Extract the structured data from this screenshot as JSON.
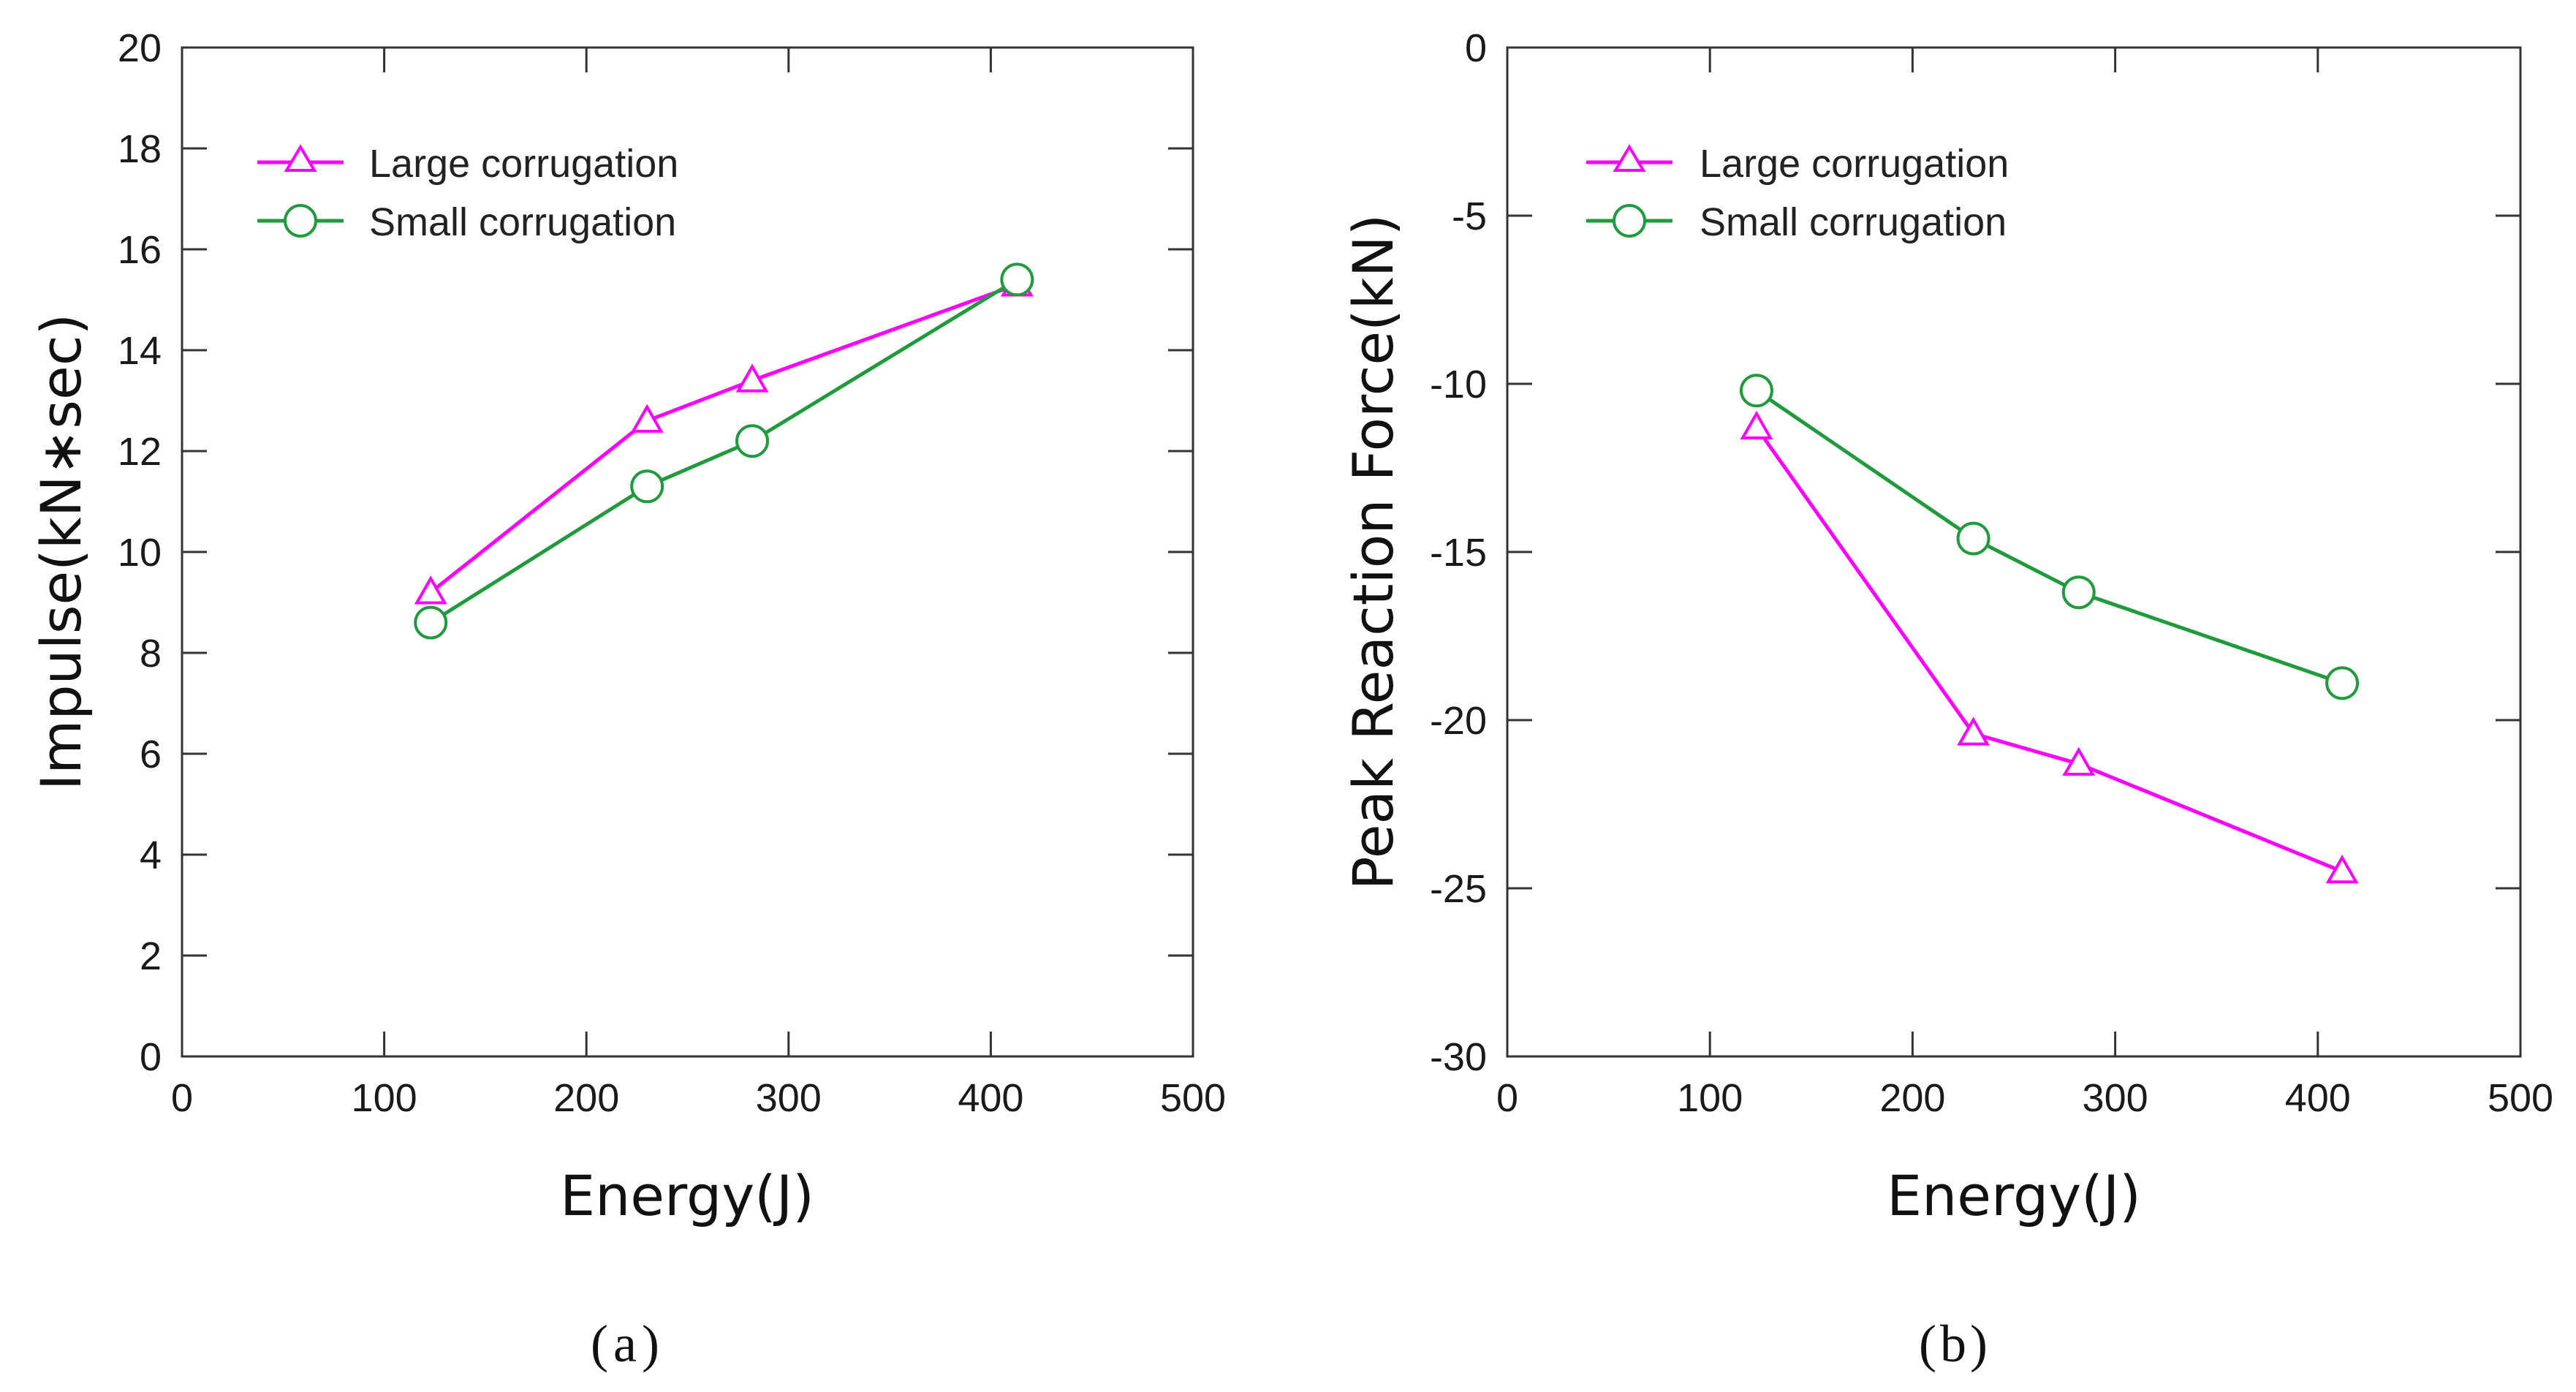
{
  "chart_data": [
    {
      "type": "line",
      "panel_label": "a",
      "xlabel": "Energy(J)",
      "ylabel": "Impulse(kN∗sec)",
      "xlim": [
        0,
        500
      ],
      "ylim": [
        0,
        20
      ],
      "xticks": [
        0,
        100,
        200,
        300,
        400,
        500
      ],
      "yticks": [
        0,
        2,
        4,
        6,
        8,
        10,
        12,
        14,
        16,
        18,
        20
      ],
      "grid": false,
      "legend": "top-left",
      "series": [
        {
          "name": "Large corrugation",
          "color": "#ff00ff",
          "marker": "triangle",
          "x": [
            123,
            230,
            282,
            413
          ],
          "y": [
            9.2,
            12.6,
            13.4,
            15.3
          ]
        },
        {
          "name": "Small corrugation",
          "color": "#1f9a3c",
          "marker": "circle",
          "x": [
            123,
            230,
            282,
            413
          ],
          "y": [
            8.6,
            11.3,
            12.2,
            15.4
          ]
        }
      ]
    },
    {
      "type": "line",
      "panel_label": "b",
      "xlabel": "Energy(J)",
      "ylabel": "Peak Reaction Force(kN)",
      "xlim": [
        0,
        500
      ],
      "ylim": [
        -30,
        0
      ],
      "xticks": [
        0,
        100,
        200,
        300,
        400,
        500
      ],
      "yticks": [
        0,
        -5,
        -10,
        -15,
        -20,
        -25,
        -30
      ],
      "grid": false,
      "legend": "top-left",
      "series": [
        {
          "name": "Large corrugation",
          "color": "#ff00ff",
          "marker": "triangle",
          "x": [
            123,
            230,
            282,
            412
          ],
          "y": [
            -11.3,
            -20.4,
            -21.3,
            -24.5
          ]
        },
        {
          "name": "Small corrugation",
          "color": "#1f9a3c",
          "marker": "circle",
          "x": [
            123,
            230,
            282,
            412
          ],
          "y": [
            -10.2,
            -14.6,
            -16.2,
            -18.9
          ]
        }
      ]
    }
  ]
}
